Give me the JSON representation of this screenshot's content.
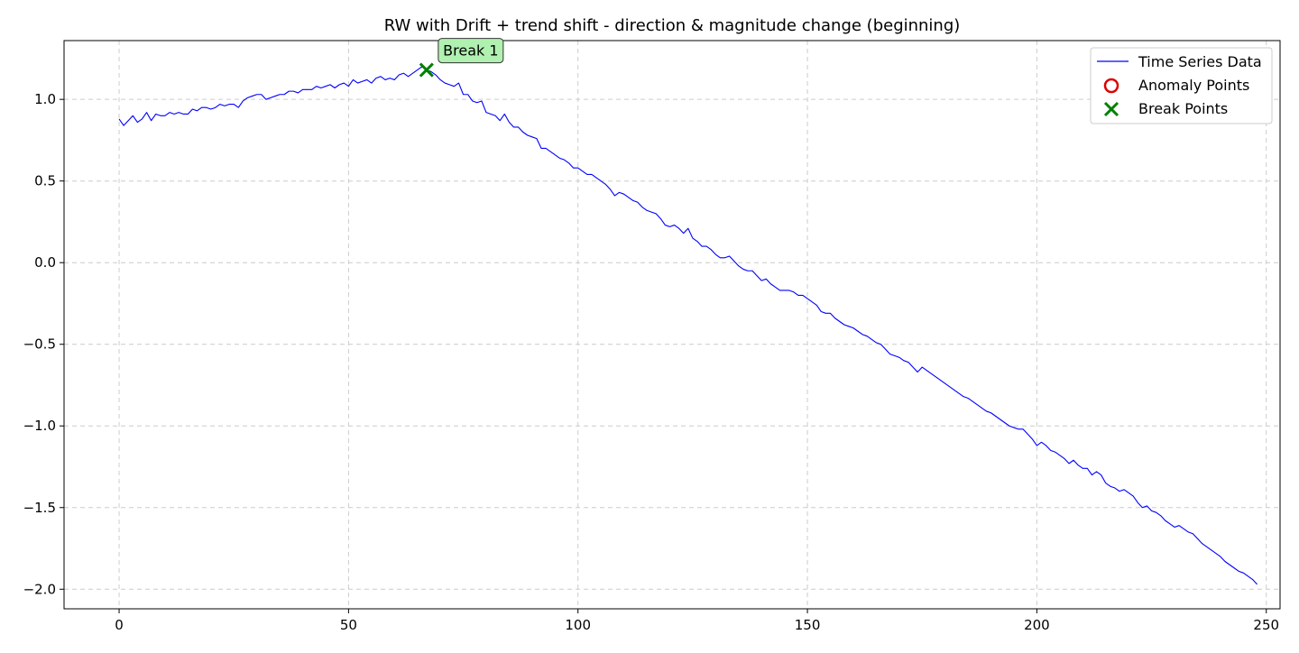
{
  "chart_data": {
    "type": "line",
    "title": "RW with Drift + trend shift - direction & magnitude change (beginning)",
    "xlabel": "",
    "ylabel": "",
    "xlim": [
      -12,
      253
    ],
    "ylim": [
      -2.12,
      1.36
    ],
    "x_ticks": [
      0,
      50,
      100,
      150,
      200,
      250
    ],
    "y_ticks": [
      1.0,
      0.5,
      0.0,
      -0.5,
      -1.0,
      -1.5,
      -2.0
    ],
    "x_tick_labels": [
      "0",
      "50",
      "100",
      "150",
      "200",
      "250"
    ],
    "y_tick_labels": [
      "1.0",
      "0.5",
      "0.0",
      "−0.5",
      "−1.0",
      "−1.5",
      "−2.0"
    ],
    "grid": true,
    "legend_position": "top-right",
    "legend": {
      "series_label": "Time Series Data",
      "anomaly_label": "Anomaly Points",
      "break_label": "Break Points"
    },
    "colors": {
      "series": "#0000ff",
      "anomaly": "#dd0000",
      "break": "#008000",
      "annotation_fill": "#b0f0b0",
      "grid": "#cccccc"
    },
    "series": [
      {
        "name": "Time Series Data",
        "x_start": 0,
        "values": [
          0.88,
          0.84,
          0.87,
          0.9,
          0.86,
          0.88,
          0.92,
          0.87,
          0.91,
          0.9,
          0.9,
          0.92,
          0.91,
          0.92,
          0.91,
          0.91,
          0.94,
          0.93,
          0.95,
          0.95,
          0.94,
          0.95,
          0.97,
          0.96,
          0.97,
          0.97,
          0.95,
          0.99,
          1.01,
          1.02,
          1.03,
          1.03,
          1.0,
          1.01,
          1.02,
          1.03,
          1.03,
          1.05,
          1.05,
          1.04,
          1.06,
          1.06,
          1.06,
          1.08,
          1.07,
          1.08,
          1.09,
          1.07,
          1.09,
          1.1,
          1.08,
          1.12,
          1.1,
          1.11,
          1.12,
          1.1,
          1.13,
          1.14,
          1.12,
          1.13,
          1.12,
          1.15,
          1.16,
          1.14,
          1.16,
          1.18,
          1.2,
          1.18,
          1.17,
          1.15,
          1.12,
          1.1,
          1.09,
          1.08,
          1.1,
          1.03,
          1.03,
          0.99,
          0.98,
          0.99,
          0.92,
          0.91,
          0.9,
          0.87,
          0.91,
          0.86,
          0.83,
          0.83,
          0.8,
          0.78,
          0.77,
          0.76,
          0.7,
          0.7,
          0.68,
          0.66,
          0.64,
          0.63,
          0.61,
          0.58,
          0.58,
          0.56,
          0.54,
          0.54,
          0.52,
          0.5,
          0.48,
          0.45,
          0.41,
          0.43,
          0.42,
          0.4,
          0.38,
          0.37,
          0.34,
          0.32,
          0.31,
          0.3,
          0.27,
          0.23,
          0.22,
          0.23,
          0.21,
          0.18,
          0.21,
          0.15,
          0.13,
          0.1,
          0.1,
          0.08,
          0.05,
          0.03,
          0.03,
          0.04,
          0.01,
          -0.02,
          -0.04,
          -0.05,
          -0.05,
          -0.08,
          -0.11,
          -0.1,
          -0.13,
          -0.15,
          -0.17,
          -0.17,
          -0.17,
          -0.18,
          -0.2,
          -0.2,
          -0.22,
          -0.24,
          -0.26,
          -0.3,
          -0.31,
          -0.31,
          -0.34,
          -0.36,
          -0.38,
          -0.39,
          -0.4,
          -0.42,
          -0.44,
          -0.45,
          -0.47,
          -0.49,
          -0.5,
          -0.53,
          -0.56,
          -0.57,
          -0.58,
          -0.6,
          -0.61,
          -0.64,
          -0.67,
          -0.64,
          -0.66,
          -0.68,
          -0.7,
          -0.72,
          -0.74,
          -0.76,
          -0.78,
          -0.8,
          -0.82,
          -0.83,
          -0.85,
          -0.87,
          -0.89,
          -0.91,
          -0.92,
          -0.94,
          -0.96,
          -0.98,
          -1.0,
          -1.01,
          -1.02,
          -1.02,
          -1.05,
          -1.08,
          -1.12,
          -1.1,
          -1.12,
          -1.15,
          -1.16,
          -1.18,
          -1.2,
          -1.23,
          -1.21,
          -1.24,
          -1.26,
          -1.26,
          -1.3,
          -1.28,
          -1.3,
          -1.35,
          -1.37,
          -1.38,
          -1.4,
          -1.39,
          -1.41,
          -1.43,
          -1.47,
          -1.5,
          -1.49,
          -1.52,
          -1.53,
          -1.55,
          -1.58,
          -1.6,
          -1.62,
          -1.61,
          -1.63,
          -1.65,
          -1.66,
          -1.69,
          -1.72,
          -1.74,
          -1.76,
          -1.78,
          -1.8,
          -1.83,
          -1.85,
          -1.87,
          -1.89,
          -1.9,
          -1.92,
          -1.94,
          -1.97
        ]
      }
    ],
    "anomaly_points": [],
    "break_points": [
      {
        "x": 67,
        "y": 1.18,
        "label": "Break 1"
      }
    ]
  }
}
